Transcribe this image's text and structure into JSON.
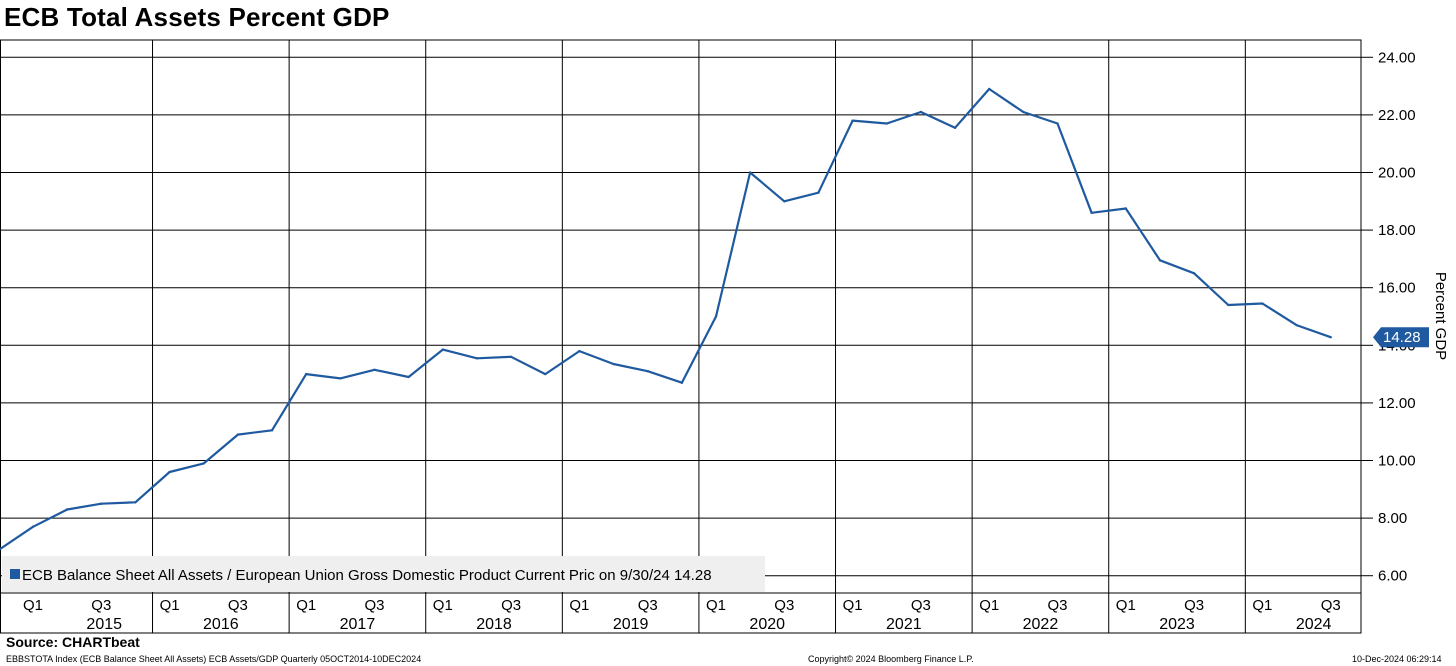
{
  "title": "ECB Total Assets Percent GDP",
  "source": "Source: CHARTbeat",
  "footer": {
    "left": "EBBSTOTA Index (ECB Balance Sheet All Assets) ECB Assets/GDP  Quarterly 05OCT2014-10DEC2024",
    "center": "Copyright© 2024 Bloomberg Finance L.P.",
    "right": "10-Dec-2024 06:29:14"
  },
  "chart_data": {
    "type": "line",
    "title": "ECB Total Assets Percent GDP",
    "ylabel": "Percent GDP",
    "xlabel": "",
    "ylim": [
      5.4,
      24.6
    ],
    "y_ticks": [
      "6.00",
      "8.00",
      "10.00",
      "12.00",
      "14.00",
      "16.00",
      "18.00",
      "20.00",
      "22.00",
      "24.00"
    ],
    "y_tick_values": [
      6,
      8,
      10,
      12,
      14,
      16,
      18,
      20,
      22,
      24
    ],
    "years": [
      "2015",
      "2016",
      "2017",
      "2018",
      "2019",
      "2020",
      "2021",
      "2022",
      "2023",
      "2024"
    ],
    "quarter_ticks": [
      "Q1",
      "Q3"
    ],
    "grid": true,
    "legend": {
      "text": "ECB Balance Sheet All Assets / European Union Gross Domestic Product Current Pric on 9/30/24 14.28",
      "position": "bottom-left",
      "color": "#1f5aa0"
    },
    "last_value_label": "14.28",
    "series": [
      {
        "name": "ECB Balance Sheet All Assets / European Union Gross Domestic Product Current Pric",
        "color": "#1f5aa0",
        "x": [
          "2014 Q4",
          "2015 Q1",
          "2015 Q2",
          "2015 Q3",
          "2015 Q4",
          "2016 Q1",
          "2016 Q2",
          "2016 Q3",
          "2016 Q4",
          "2017 Q1",
          "2017 Q2",
          "2017 Q3",
          "2017 Q4",
          "2018 Q1",
          "2018 Q2",
          "2018 Q3",
          "2018 Q4",
          "2019 Q1",
          "2019 Q2",
          "2019 Q3",
          "2019 Q4",
          "2020 Q1",
          "2020 Q2",
          "2020 Q3",
          "2020 Q4",
          "2021 Q1",
          "2021 Q2",
          "2021 Q3",
          "2021 Q4",
          "2022 Q1",
          "2022 Q2",
          "2022 Q3",
          "2022 Q4",
          "2023 Q1",
          "2023 Q2",
          "2023 Q3",
          "2023 Q4",
          "2024 Q1",
          "2024 Q2",
          "2024 Q3"
        ],
        "values": [
          6.9,
          7.7,
          8.3,
          8.5,
          8.55,
          9.6,
          9.9,
          10.9,
          11.05,
          13.0,
          12.85,
          13.15,
          12.9,
          13.85,
          13.55,
          13.6,
          13.0,
          13.8,
          13.35,
          13.1,
          12.7,
          15.0,
          20.0,
          19.0,
          19.3,
          21.8,
          21.7,
          22.1,
          21.55,
          22.9,
          22.1,
          21.7,
          18.6,
          18.75,
          16.95,
          16.5,
          15.4,
          15.45,
          14.7,
          14.28
        ]
      }
    ]
  }
}
